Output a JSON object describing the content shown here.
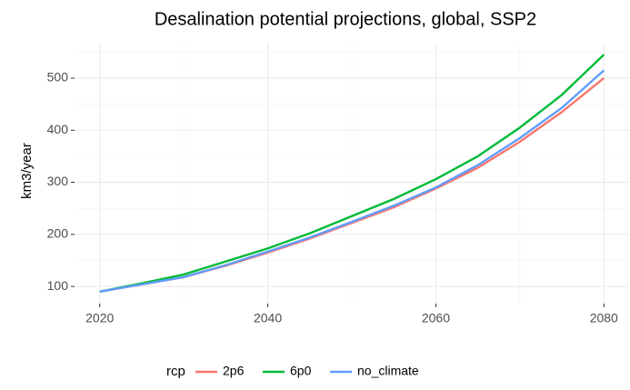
{
  "chart_data": {
    "type": "line",
    "title": "Desalination potential projections, global, SSP2",
    "y_label": "km3/year",
    "legend_title": "rcp",
    "legend_position": "bottom",
    "grid": true,
    "x": [
      2020,
      2025,
      2030,
      2035,
      2040,
      2045,
      2050,
      2055,
      2060,
      2065,
      2070,
      2075,
      2080
    ],
    "series": [
      {
        "name": "2p6",
        "color": "#F8766D",
        "values": [
          90,
          104,
          118,
          140,
          165,
          192,
          222,
          252,
          288,
          328,
          378,
          435,
          500
        ]
      },
      {
        "name": "6p0",
        "color": "#00BA38",
        "values": [
          90,
          106,
          123,
          148,
          173,
          202,
          235,
          268,
          306,
          350,
          405,
          468,
          545
        ]
      },
      {
        "name": "no_climate",
        "color": "#619CFF",
        "values": [
          90,
          104,
          118,
          141,
          167,
          194,
          224,
          255,
          290,
          333,
          385,
          443,
          515
        ]
      }
    ],
    "xlim": [
      2017,
      2083
    ],
    "xticks": [
      2020,
      2040,
      2060,
      2080
    ],
    "ylim": [
      67,
      568
    ],
    "yticks": [
      100,
      200,
      300,
      400,
      500
    ]
  }
}
